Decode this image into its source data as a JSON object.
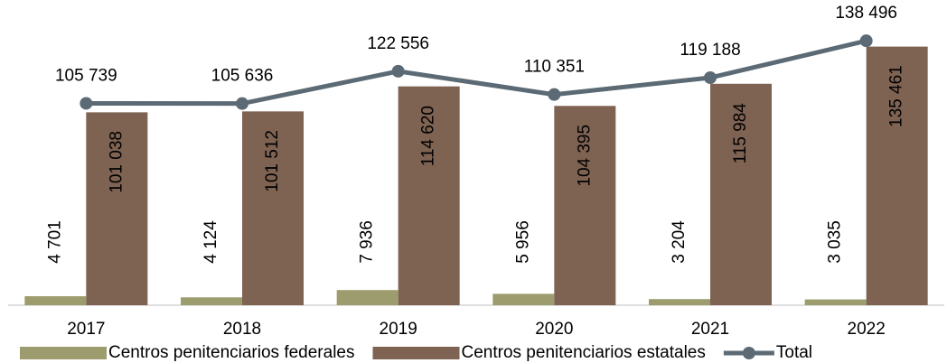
{
  "chart_data": {
    "type": "bar",
    "categories": [
      "2017",
      "2018",
      "2019",
      "2020",
      "2021",
      "2022"
    ],
    "ylim": [
      0,
      140000
    ],
    "series": [
      {
        "name": "Centros penitenciarios federales",
        "type": "bar",
        "color": "#9c9c6e",
        "values": [
          4701,
          4124,
          7936,
          5956,
          3204,
          3035
        ],
        "value_labels": [
          "4 701",
          "4 124",
          "7 936",
          "5 956",
          "3 204",
          "3 035"
        ]
      },
      {
        "name": "Centros penitenciarios estatales",
        "type": "bar",
        "color": "#7e6252",
        "values": [
          101038,
          101512,
          114620,
          104395,
          115984,
          135461
        ],
        "value_labels": [
          "101 038",
          "101 512",
          "114 620",
          "104 395",
          "115 984",
          "135 461"
        ]
      },
      {
        "name": "Total",
        "type": "line",
        "color": "#5b6a74",
        "values": [
          105739,
          105636,
          122556,
          110351,
          119188,
          138496
        ],
        "value_labels": [
          "105 739",
          "105 636",
          "122 556",
          "110 351",
          "119 188",
          "138 496"
        ]
      }
    ]
  }
}
